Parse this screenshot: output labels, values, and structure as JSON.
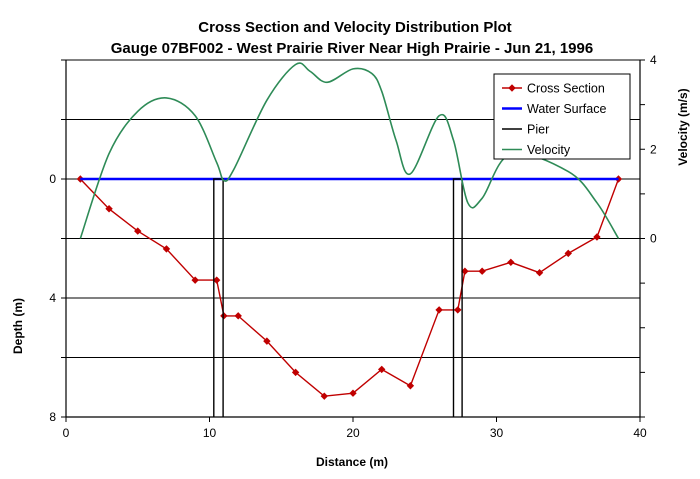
{
  "chart_data": {
    "type": "line",
    "title": "Cross Section and Velocity Distribution Plot",
    "subtitle": "Gauge 07BF002 - West Prairie River Near High Prairie - Jun 21, 1996",
    "xlabel": "Distance (m)",
    "ylabel_left": "Depth (m)",
    "ylabel_right": "Velocity (m/s)",
    "xlim": [
      0,
      40
    ],
    "x_ticks": [
      "0",
      "10",
      "20",
      "30",
      "40"
    ],
    "depth_lim": [
      -4,
      8
    ],
    "depth_ticks": [
      {
        "value": 0,
        "label": "0"
      },
      {
        "value": 4,
        "label": "4"
      },
      {
        "value": 8,
        "label": "8"
      }
    ],
    "velocity_lim": [
      -4,
      4
    ],
    "velocity_ticks": [
      {
        "value": 4,
        "label": "4"
      },
      {
        "value": 2,
        "label": "2"
      },
      {
        "value": 0,
        "label": "0"
      }
    ],
    "grid": "horizontal",
    "legend_position": "top-right",
    "series": [
      {
        "name": "Cross Section",
        "axis": "depth",
        "color": "#c00000",
        "marker": "diamond",
        "x": [
          1,
          3,
          5,
          7,
          9,
          10.5,
          11,
          12,
          14,
          16,
          18,
          20,
          22,
          24,
          26,
          27.3,
          27.8,
          29,
          31,
          33,
          35,
          37,
          38.5
        ],
        "y": [
          0,
          1.0,
          1.75,
          2.35,
          3.4,
          3.4,
          4.6,
          4.6,
          5.45,
          6.5,
          7.3,
          7.2,
          6.4,
          6.95,
          4.4,
          4.4,
          3.1,
          3.1,
          2.8,
          3.15,
          2.5,
          1.95,
          0
        ]
      },
      {
        "name": "Water Surface",
        "axis": "depth",
        "color": "#0000ff",
        "x": [
          1,
          38.5
        ],
        "y": [
          0,
          0
        ]
      },
      {
        "name": "Pier",
        "axis": "depth",
        "color": "#000000",
        "shapes": [
          {
            "x": [
              10.3,
              10.3,
              10.95,
              10.95
            ],
            "y": [
              8,
              0,
              0,
              8
            ]
          },
          {
            "x": [
              27.0,
              27.0,
              27.6,
              27.6
            ],
            "y": [
              8,
              0,
              0,
              8
            ]
          }
        ]
      },
      {
        "name": "Velocity",
        "axis": "velocity",
        "color": "#2e8b57",
        "x": [
          1,
          3,
          5,
          7,
          9,
          10.5,
          11,
          11.7,
          14,
          16,
          17,
          18.2,
          20,
          21.3,
          22,
          23,
          24,
          26,
          27,
          28,
          29,
          31,
          35,
          37,
          38.5
        ],
        "y": [
          0,
          1.9,
          2.85,
          3.15,
          2.75,
          1.7,
          1.3,
          1.55,
          3.1,
          3.9,
          3.75,
          3.5,
          3.8,
          3.7,
          3.3,
          2.2,
          1.45,
          2.75,
          2.2,
          0.8,
          0.9,
          1.9,
          1.5,
          0.8,
          0
        ]
      }
    ]
  }
}
